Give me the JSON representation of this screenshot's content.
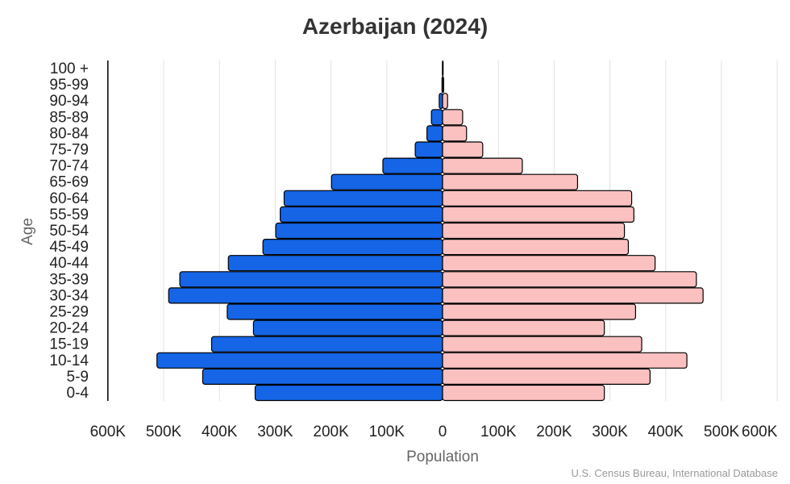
{
  "chart_data": {
    "type": "bar",
    "orientation": "horizontal-population-pyramid",
    "title": "Azerbaijan (2024)",
    "xlabel": "Population",
    "ylabel": "Age",
    "source": "U.S. Census Bureau, International Database",
    "xlim": [
      -600000,
      600000
    ],
    "x_ticks": [
      "600K",
      "500K",
      "400K",
      "300K",
      "200K",
      "100K",
      "0",
      "100K",
      "200K",
      "300K",
      "400K",
      "500K",
      "600K"
    ],
    "grid": true,
    "categories": [
      "0-4",
      "5-9",
      "10-14",
      "15-19",
      "20-24",
      "25-29",
      "30-34",
      "35-39",
      "40-44",
      "45-49",
      "50-54",
      "55-59",
      "60-64",
      "65-69",
      "70-74",
      "75-79",
      "80-84",
      "85-89",
      "90-94",
      "95-99",
      "100 +"
    ],
    "series": [
      {
        "side": "left",
        "color": "#1565e6",
        "values": [
          336000,
          430000,
          512000,
          414000,
          339000,
          386000,
          491000,
          471000,
          384000,
          322000,
          299000,
          291000,
          284000,
          199000,
          107000,
          49000,
          28000,
          20000,
          6000,
          1000,
          200
        ]
      },
      {
        "side": "right",
        "color": "#fbc0c0",
        "values": [
          290000,
          372000,
          438000,
          357000,
          290000,
          346000,
          467000,
          455000,
          381000,
          333000,
          326000,
          343000,
          339000,
          242000,
          143000,
          72000,
          43000,
          36000,
          9000,
          2000,
          1000
        ]
      }
    ]
  }
}
